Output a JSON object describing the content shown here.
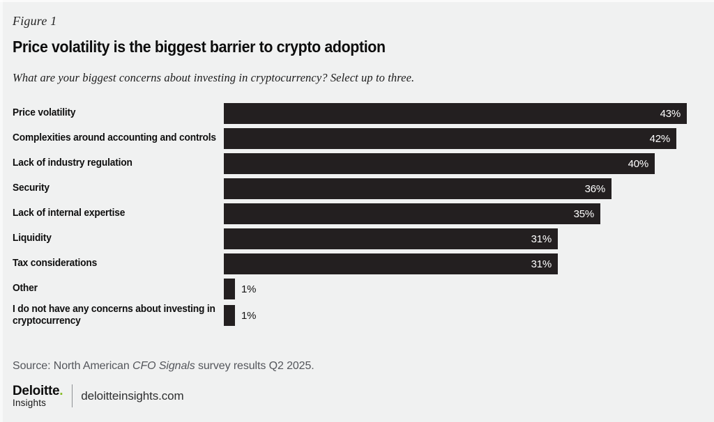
{
  "figure_label": "Figure 1",
  "title": "Price volatility is the biggest barrier to crypto adoption",
  "subtitle": "What are your biggest concerns about investing in cryptocurrency? Select up to three.",
  "chart_data": {
    "type": "bar",
    "orientation": "horizontal",
    "title": "Price volatility is the biggest barrier to crypto adoption",
    "question": "What are your biggest concerns about investing in cryptocurrency? Select up to three.",
    "categories": [
      "Price volatility",
      "Complexities around accounting and controls",
      "Lack of industry regulation",
      "Security",
      "Lack of internal expertise",
      "Liquidity",
      "Tax considerations",
      "Other",
      "I do not have any concerns about investing in cryptocurrency"
    ],
    "values": [
      43,
      42,
      40,
      36,
      35,
      31,
      31,
      1,
      1
    ],
    "value_labels": [
      "43%",
      "42%",
      "40%",
      "36%",
      "35%",
      "31%",
      "31%",
      "1%",
      "1%"
    ],
    "unit": "percent",
    "xlim": [
      0,
      43
    ],
    "grid": false,
    "legend": false,
    "bar_color": "#231f20",
    "value_label_color_inside": "#ffffff",
    "value_label_color_outside": "#141414",
    "background_color": "#f0f1f1"
  },
  "footer": {
    "source_prefix": "Source: North American ",
    "source_italic": "CFO Signals",
    "source_suffix": " survey results Q2 2025.",
    "brand_main": "Deloitte",
    "brand_dot": ".",
    "brand_sub": "Insights",
    "brand_site": "deloitteinsights.com",
    "brand_dot_color": "#86bc25"
  }
}
